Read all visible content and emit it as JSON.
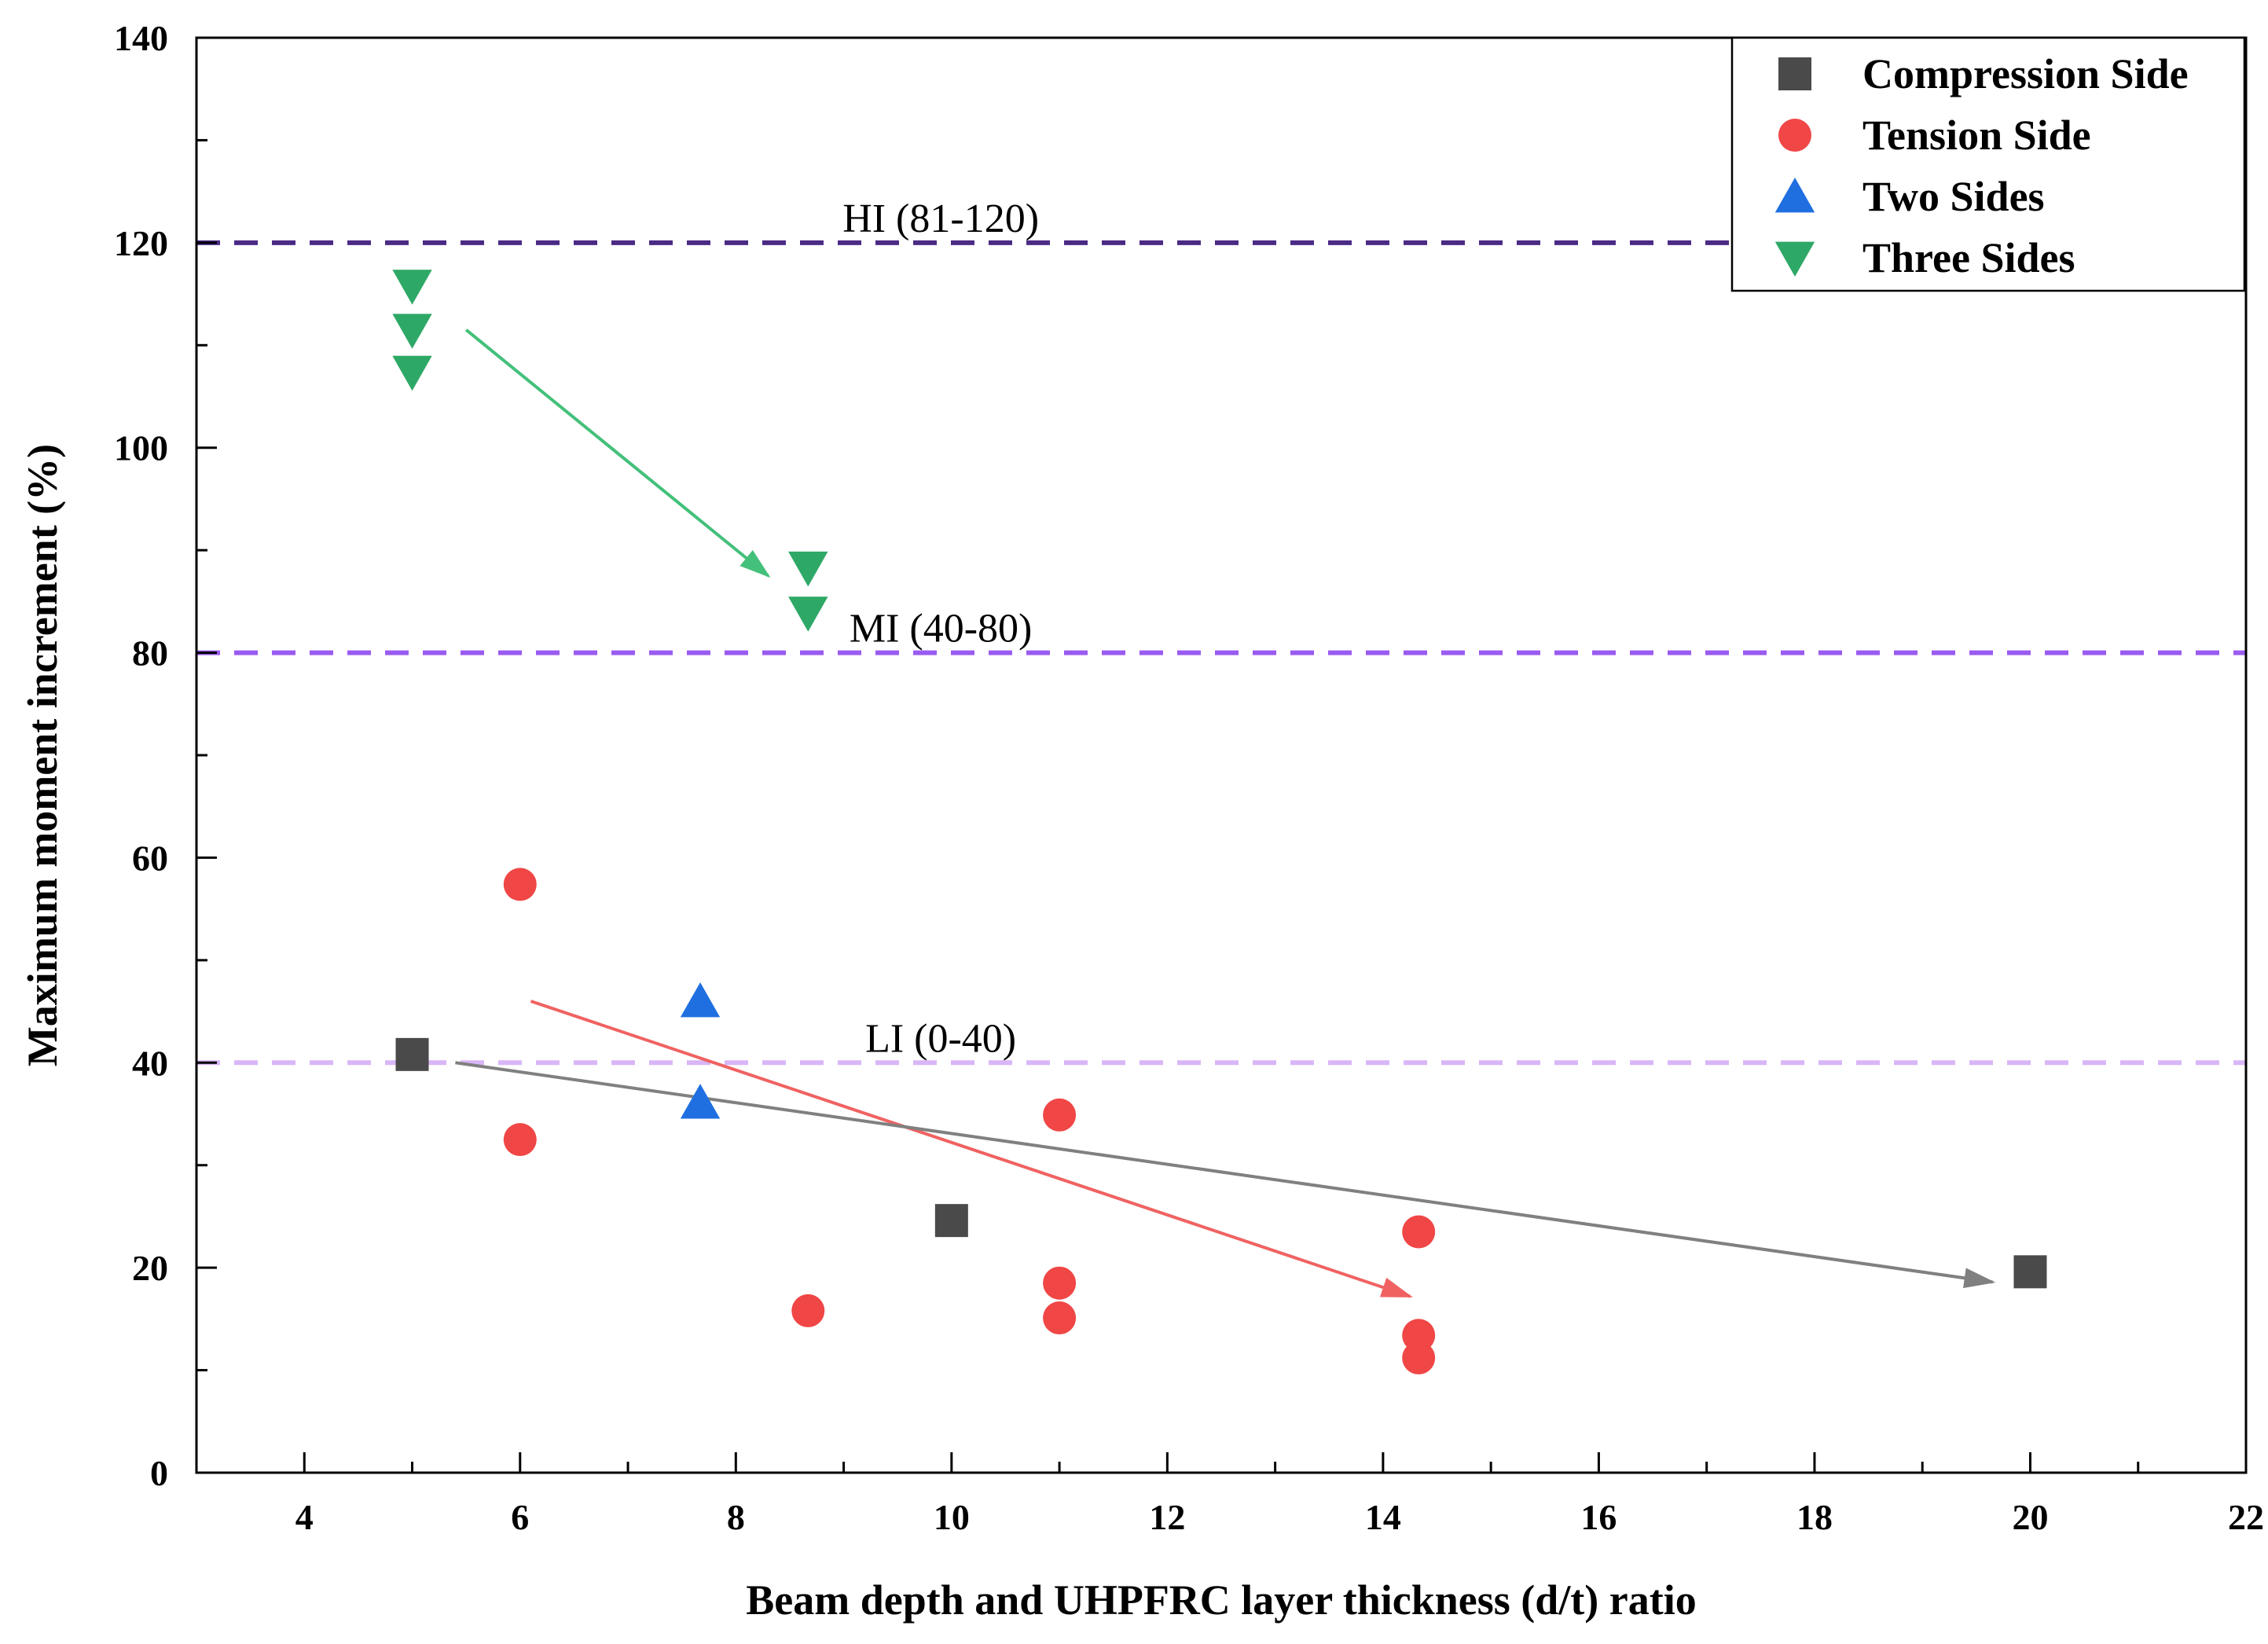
{
  "chart_data": {
    "type": "scatter",
    "title": "",
    "xlabel": "Beam depth and UHPFRC layer thickness (d/t) ratio",
    "ylabel": "Maximum moment increment (%)",
    "xlim": [
      3,
      22
    ],
    "ylim": [
      0,
      140
    ],
    "x_ticks": [
      4,
      6,
      8,
      10,
      12,
      14,
      16,
      18,
      20,
      22
    ],
    "y_ticks": [
      0,
      20,
      40,
      60,
      80,
      100,
      120,
      140
    ],
    "grid": false,
    "legend_position": "top-right",
    "series": [
      {
        "name": "Compression Side",
        "marker": "square",
        "color": "#4a4a4a",
        "points": [
          [
            5,
            40.8
          ],
          [
            10,
            24.6
          ],
          [
            20,
            19.6
          ]
        ]
      },
      {
        "name": "Tension Side",
        "marker": "circle",
        "color": "#f04646",
        "points": [
          [
            6,
            57.4
          ],
          [
            6,
            32.5
          ],
          [
            8.67,
            15.8
          ],
          [
            11,
            34.9
          ],
          [
            11,
            18.5
          ],
          [
            11,
            15.1
          ],
          [
            14.33,
            23.5
          ],
          [
            14.33,
            13.4
          ],
          [
            14.33,
            11.2
          ]
        ]
      },
      {
        "name": "Two Sides",
        "marker": "triangle-up",
        "color": "#1f6fe0",
        "points": [
          [
            7.67,
            46.0
          ],
          [
            7.67,
            36.1
          ]
        ]
      },
      {
        "name": "Three Sides",
        "marker": "triangle-down",
        "color": "#2ea866",
        "points": [
          [
            5,
            115.8
          ],
          [
            5,
            111.5
          ],
          [
            5,
            107.4
          ],
          [
            8.67,
            88.3
          ],
          [
            8.67,
            83.9
          ]
        ]
      }
    ],
    "reference_lines": [
      {
        "name": "hi-line",
        "y": 120,
        "label": "HI (81-120)",
        "label_x": 9.9,
        "color": "#4b2a86"
      },
      {
        "name": "mi-line",
        "y": 80,
        "label": "MI (40-80)",
        "label_x": 9.9,
        "color": "#9a5bf0"
      },
      {
        "name": "li-line",
        "y": 40,
        "label": "LI (0-40)",
        "label_x": 9.9,
        "color": "#d9b6f7"
      }
    ],
    "trend_arrows": [
      {
        "name": "three-sides-trend",
        "from": [
          5.5,
          111.5
        ],
        "to": [
          8.3,
          87.5
        ],
        "color": "#43c07a"
      },
      {
        "name": "tension-side-trend",
        "from": [
          6.1,
          46.0
        ],
        "to": [
          14.25,
          17.2
        ],
        "color": "#f06262"
      },
      {
        "name": "compression-side-trend",
        "from": [
          5.4,
          40.0
        ],
        "to": [
          19.65,
          18.6
        ],
        "color": "#808080"
      }
    ]
  }
}
